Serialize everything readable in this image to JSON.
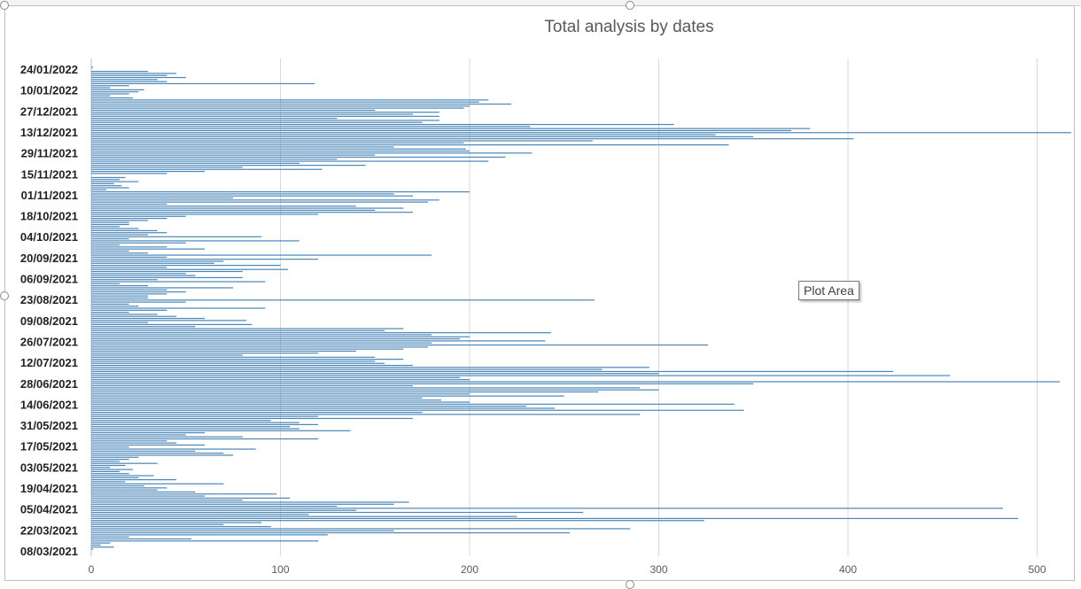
{
  "chart_data": {
    "type": "bar",
    "orientation": "horizontal",
    "title": "Total analysis by dates",
    "xlabel": "",
    "ylabel": "",
    "xlim": [
      0,
      520
    ],
    "x_ticks": [
      "0",
      "100",
      "200",
      "300",
      "400",
      "500"
    ],
    "grid": "vertical",
    "bar_color": "#4a86b8",
    "category_labels_shown": [
      "24/01/2022",
      "10/01/2022",
      "27/12/2021",
      "13/12/2021",
      "29/11/2021",
      "15/11/2021",
      "01/11/2021",
      "18/10/2021",
      "04/10/2021",
      "20/09/2021",
      "06/09/2021",
      "23/08/2021",
      "09/08/2021",
      "26/07/2021",
      "12/07/2021",
      "28/06/2021",
      "14/06/2021",
      "31/05/2021",
      "17/05/2021",
      "03/05/2021",
      "19/04/2021",
      "05/04/2021",
      "22/03/2021",
      "08/03/2021"
    ],
    "values_top_to_bottom": [
      1,
      0,
      30,
      45,
      40,
      50,
      35,
      40,
      118,
      20,
      10,
      28,
      25,
      20,
      10,
      22,
      210,
      205,
      222,
      200,
      197,
      150,
      184,
      170,
      184,
      130,
      184,
      175,
      308,
      232,
      380,
      370,
      518,
      330,
      350,
      403,
      265,
      197,
      337,
      160,
      198,
      200,
      233,
      150,
      219,
      130,
      210,
      110,
      145,
      80,
      122,
      60,
      40,
      0,
      18,
      15,
      25,
      12,
      16,
      20,
      8,
      200,
      160,
      170,
      75,
      184,
      178,
      40,
      140,
      165,
      150,
      170,
      120,
      50,
      40,
      30,
      20,
      20,
      15,
      25,
      35,
      40,
      30,
      90,
      20,
      110,
      50,
      15,
      40,
      60,
      20,
      30,
      180,
      40,
      120,
      70,
      65,
      100,
      40,
      104,
      80,
      50,
      55,
      80,
      35,
      92,
      15,
      30,
      75,
      40,
      50,
      40,
      30,
      30,
      266,
      50,
      20,
      25,
      92,
      40,
      20,
      35,
      45,
      60,
      82,
      30,
      85,
      55,
      165,
      155,
      243,
      180,
      200,
      195,
      240,
      180,
      326,
      178,
      165,
      140,
      120,
      80,
      150,
      165,
      150,
      155,
      170,
      295,
      270,
      424,
      300,
      454,
      195,
      200,
      512,
      350,
      170,
      290,
      300,
      268,
      200,
      250,
      175,
      185,
      200,
      340,
      230,
      245,
      345,
      175,
      290,
      120,
      170,
      95,
      110,
      120,
      105,
      110,
      137,
      60,
      50,
      80,
      120,
      40,
      45,
      60,
      20,
      87,
      55,
      70,
      75,
      25,
      20,
      15,
      35,
      18,
      10,
      22,
      15,
      20,
      33,
      25,
      45,
      18,
      70,
      28,
      40,
      35,
      55,
      98,
      60,
      105,
      80,
      168,
      160,
      130,
      482,
      140,
      260,
      115,
      225,
      490,
      324,
      90,
      70,
      95,
      285,
      160,
      253,
      125,
      20,
      53,
      120,
      10,
      5,
      12,
      1
    ]
  },
  "ui": {
    "tooltip_text": "Plot Area"
  }
}
